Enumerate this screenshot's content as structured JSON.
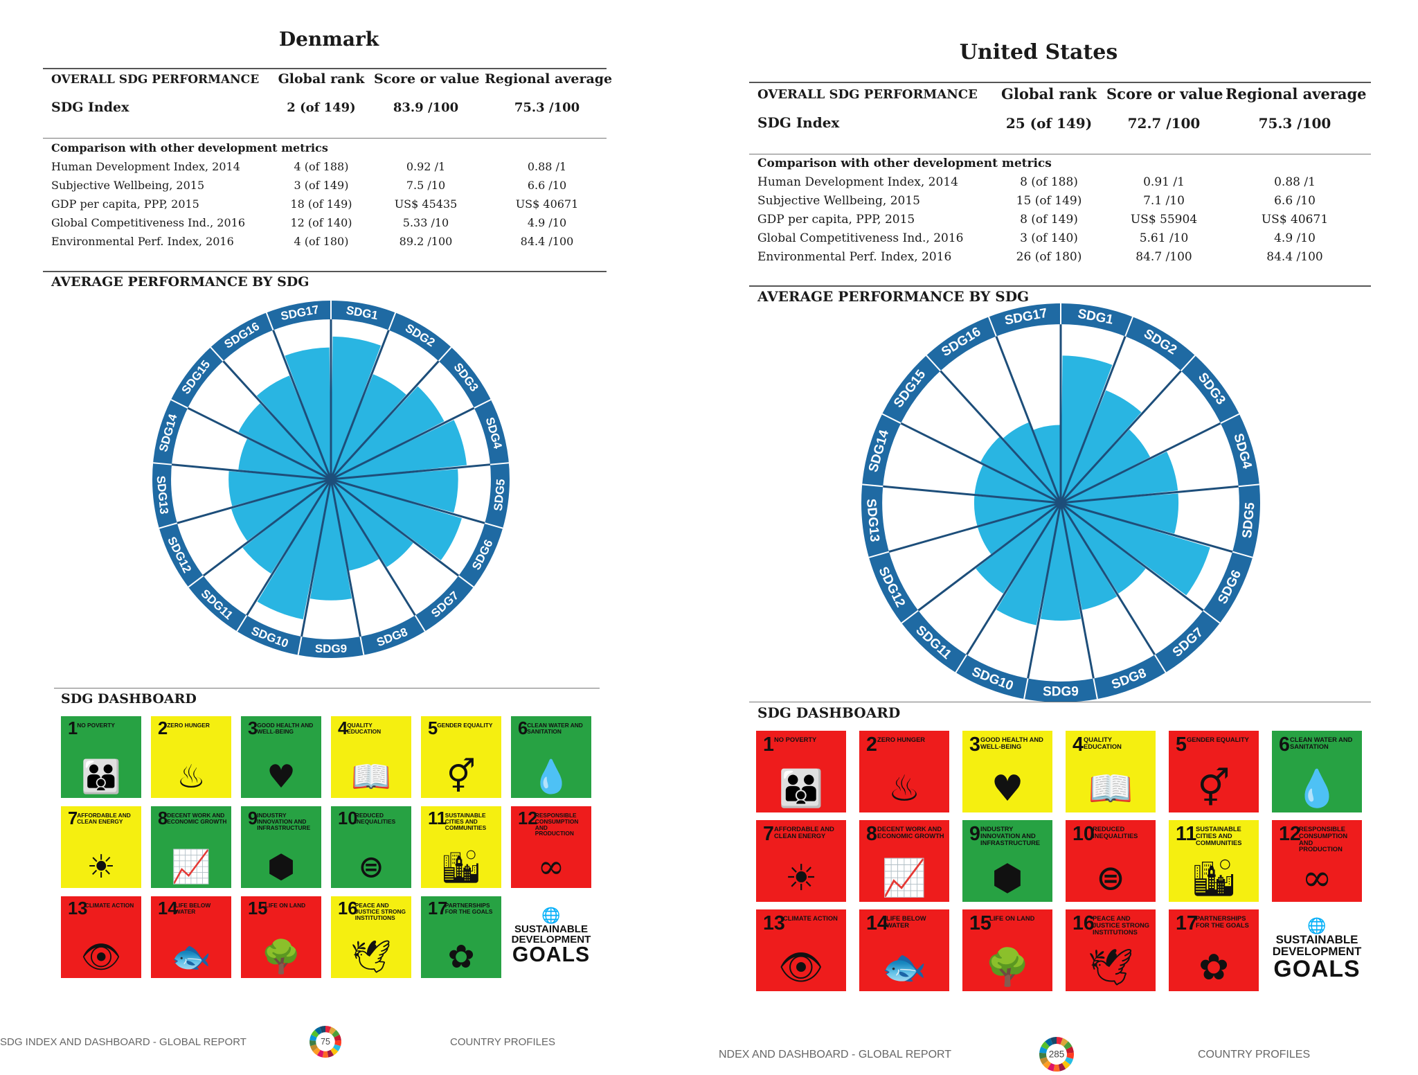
{
  "colors": {
    "green": "#27a243",
    "yellow": "#f5ef10",
    "red": "#ee1c1c",
    "wheel_fill": "#29b5e2",
    "wheel_ring": "#1f6aa3",
    "spoke": "#1d4e7a"
  },
  "sdg_titles": [
    "NO POVERTY",
    "ZERO HUNGER",
    "GOOD HEALTH AND WELL-BEING",
    "QUALITY EDUCATION",
    "GENDER EQUALITY",
    "CLEAN WATER AND SANITATION",
    "AFFORDABLE AND CLEAN ENERGY",
    "DECENT WORK AND ECONOMIC GROWTH",
    "INDUSTRY INNOVATION AND INFRASTRUCTURE",
    "REDUCED INEQUALITIES",
    "SUSTAINABLE CITIES AND COMMUNITIES",
    "RESPONSIBLE CONSUMPTION AND PRODUCTION",
    "CLIMATE ACTION",
    "LIFE BELOW WATER",
    "LIFE ON LAND",
    "PEACE AND JUSTICE STRONG INSTITUTIONS",
    "PARTNERSHIPS FOR THE GOALS"
  ],
  "sdg_icons": [
    "family-icon",
    "bowl-icon",
    "heartbeat-icon",
    "book-icon",
    "gender-icon",
    "water-drop-icon",
    "sun-icon",
    "growth-chart-icon",
    "cubes-icon",
    "equals-icon",
    "city-icon",
    "infinity-icon",
    "eye-globe-icon",
    "fish-icon",
    "tree-bird-icon",
    "dove-gavel-icon",
    "flower-icon"
  ],
  "sdg_icon_glyphs": [
    "👪",
    "♨",
    "♥",
    "📖",
    "⚥",
    "💧",
    "☀",
    "📈",
    "⬢",
    "⊜",
    "🏙",
    "∞",
    "👁",
    "🐟",
    "🌳",
    "🕊",
    "✿"
  ],
  "logo": {
    "line1": "SUSTAINABLE",
    "line2": "DEVELOPMENT",
    "line3": "GOALS"
  },
  "headers": {
    "overall": "OVERALL SDG PERFORMANCE",
    "global_rank": "Global rank",
    "score": "Score or value",
    "regional": "Regional average",
    "comparison": "Comparison with other development metrics",
    "avg_perf": "AVERAGE PERFORMANCE BY SDG",
    "dashboard": "SDG DASHBOARD"
  },
  "wheel_labels": [
    "SDG1",
    "SDG2",
    "SDG3",
    "SDG4",
    "SDG5",
    "SDG6",
    "SDG7",
    "SDG8",
    "SDG9",
    "SDG10",
    "SDG11",
    "SDG12",
    "SDG13",
    "SDG14",
    "SDG15",
    "SDG16",
    "SDG17"
  ],
  "pages": [
    {
      "country": "Denmark",
      "sdg_index": {
        "label": "SDG Index",
        "rank": "2 (of 149)",
        "score": "83.9 /100",
        "regional": "75.3 /100"
      },
      "metrics": [
        {
          "label": "Human Development Index, 2014",
          "rank": "4 (of 188)",
          "score": "0.92 /1",
          "regional": "0.88 /1"
        },
        {
          "label": "Subjective Wellbeing, 2015",
          "rank": "3 (of 149)",
          "score": "7.5 /10",
          "regional": "6.6 /10"
        },
        {
          "label": "GDP per capita, PPP, 2015",
          "rank": "18 (of 149)",
          "score": "US$ 45435",
          "regional": "US$ 40671"
        },
        {
          "label": "Global Competitiveness Ind., 2016",
          "rank": "12 (of 140)",
          "score": "5.33 /10",
          "regional": "4.9 /10"
        },
        {
          "label": "Environmental Perf. Index, 2016",
          "rank": "4 (of 180)",
          "score": "89.2 /100",
          "regional": "84.4 /100"
        }
      ],
      "chart_data": {
        "type": "radial-bar",
        "title": "AVERAGE PERFORMANCE BY SDG",
        "categories": [
          "SDG1",
          "SDG2",
          "SDG3",
          "SDG4",
          "SDG5",
          "SDG6",
          "SDG7",
          "SDG8",
          "SDG9",
          "SDG10",
          "SDG11",
          "SDG12",
          "SDG13",
          "SDG14",
          "SDG15",
          "SDG16",
          "SDG17"
        ],
        "values": [
          92,
          73,
          82,
          88,
          82,
          88,
          67,
          60,
          78,
          92,
          72,
          67,
          66,
          60,
          67,
          72,
          85
        ],
        "range": [
          0,
          100
        ]
      },
      "dashboard": [
        "green",
        "yellow",
        "green",
        "yellow",
        "yellow",
        "green",
        "yellow",
        "green",
        "green",
        "green",
        "yellow",
        "red",
        "red",
        "red",
        "red",
        "yellow",
        "green"
      ],
      "footer": {
        "left": "SDG INDEX AND DASHBOARD - GLOBAL REPORT",
        "page": "75",
        "right": "COUNTRY PROFILES"
      }
    },
    {
      "country": "United States",
      "sdg_index": {
        "label": "SDG Index",
        "rank": "25 (of 149)",
        "score": "72.7 /100",
        "regional": "75.3 /100"
      },
      "metrics": [
        {
          "label": "Human Development Index, 2014",
          "rank": "8 (of 188)",
          "score": "0.91 /1",
          "regional": "0.88 /1"
        },
        {
          "label": "Subjective Wellbeing, 2015",
          "rank": "15 (of 149)",
          "score": "7.1 /10",
          "regional": "6.6 /10"
        },
        {
          "label": "GDP per capita, PPP, 2015",
          "rank": "8 (of 149)",
          "score": "US$ 55904",
          "regional": "US$ 40671"
        },
        {
          "label": "Global Competitiveness Ind., 2016",
          "rank": "3 (of 140)",
          "score": "5.61 /10",
          "regional": "4.9 /10"
        },
        {
          "label": "Environmental Perf. Index, 2016",
          "rank": "26 (of 180)",
          "score": "84.7 /100",
          "regional": "84.4 /100"
        }
      ],
      "chart_data": {
        "type": "radial-bar",
        "title": "AVERAGE PERFORMANCE BY SDG",
        "categories": [
          "SDG1",
          "SDG2",
          "SDG3",
          "SDG4",
          "SDG5",
          "SDG6",
          "SDG7",
          "SDG8",
          "SDG9",
          "SDG10",
          "SDG11",
          "SDG12",
          "SDG13",
          "SDG14",
          "SDG15",
          "SDG16",
          "SDG17"
        ],
        "values": [
          85,
          70,
          58,
          68,
          68,
          90,
          62,
          63,
          68,
          72,
          62,
          50,
          50,
          50,
          52,
          50,
          45
        ],
        "range": [
          0,
          100
        ]
      },
      "dashboard": [
        "red",
        "red",
        "yellow",
        "yellow",
        "red",
        "green",
        "red",
        "red",
        "green",
        "red",
        "yellow",
        "red",
        "red",
        "red",
        "red",
        "red",
        "red"
      ],
      "footer": {
        "left": "NDEX AND DASHBOARD - GLOBAL REPORT",
        "page": "285",
        "right": "COUNTRY PROFILES"
      }
    }
  ]
}
